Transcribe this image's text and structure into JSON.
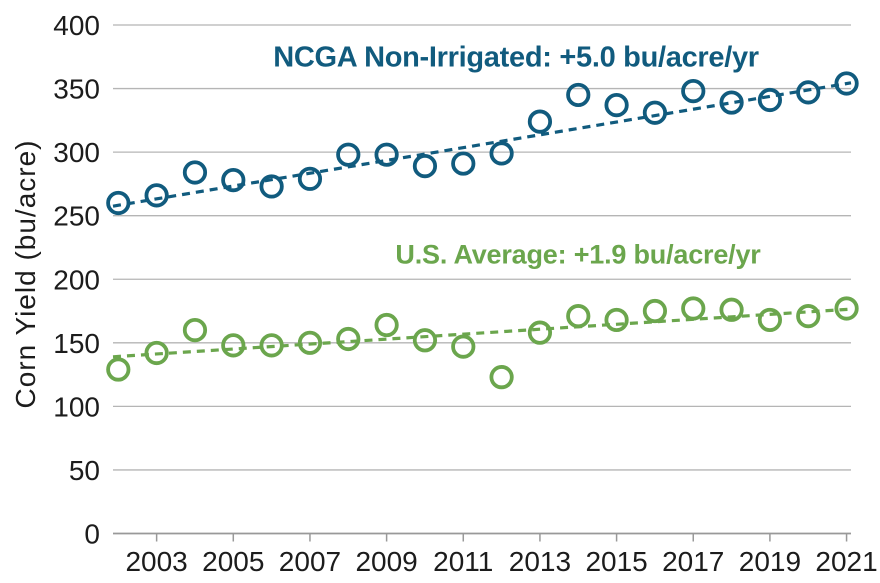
{
  "chart": {
    "ylabel": "Corn Yield (bu/acre)",
    "annotations": {
      "ncga": {
        "text": "NCGA Non-Irrigated: +5.0 bu/acre/yr",
        "color": "#115b7e"
      },
      "us": {
        "text": "U.S. Average: +1.9 bu/acre/yr",
        "color": "#6ba64d"
      }
    }
  },
  "chart_data": {
    "type": "scatter",
    "title": "",
    "xlabel": "",
    "ylabel": "Corn Yield (bu/acre)",
    "x": [
      2002,
      2003,
      2004,
      2005,
      2006,
      2007,
      2008,
      2009,
      2010,
      2011,
      2012,
      2013,
      2014,
      2015,
      2016,
      2017,
      2018,
      2019,
      2020,
      2021
    ],
    "series": [
      {
        "name": "NCGA Non-Irrigated",
        "color": "#115b7e",
        "marker": "open-circle",
        "annotation": "NCGA Non-Irrigated: +5.0 bu/acre/yr",
        "trend_slope_bu_per_acre_per_yr": 5.0,
        "trend_line_endpoints_value": [
          257.5,
          354.5
        ],
        "trend_style": "dashed",
        "values": [
          260,
          266,
          284,
          278,
          273,
          279,
          298,
          298,
          289,
          291,
          299,
          324,
          345,
          337,
          331,
          348,
          339,
          341,
          347,
          354
        ]
      },
      {
        "name": "U.S. Average",
        "color": "#6ba64d",
        "marker": "open-circle",
        "annotation": "U.S. Average: +1.9 bu/acre/yr",
        "trend_slope_bu_per_acre_per_yr": 1.9,
        "trend_line_endpoints_value": [
          139,
          176.5
        ],
        "trend_style": "dashed",
        "values": [
          129,
          142,
          160,
          148,
          148,
          150,
          153,
          164,
          152,
          147,
          123,
          158,
          171,
          168,
          175,
          177,
          176,
          168,
          171,
          177
        ]
      }
    ],
    "ylim": [
      0,
      400
    ],
    "yticks": [
      0,
      50,
      100,
      150,
      200,
      250,
      300,
      350,
      400
    ],
    "xticks": [
      2003,
      2005,
      2007,
      2009,
      2011,
      2013,
      2015,
      2017,
      2019,
      2021
    ],
    "grid": "horizontal-only",
    "legend": "inline-colored-annotations",
    "colors": {
      "gridline": "#b5b5b5",
      "axis": "#999999",
      "tick_text": "#1c1c1c"
    }
  }
}
